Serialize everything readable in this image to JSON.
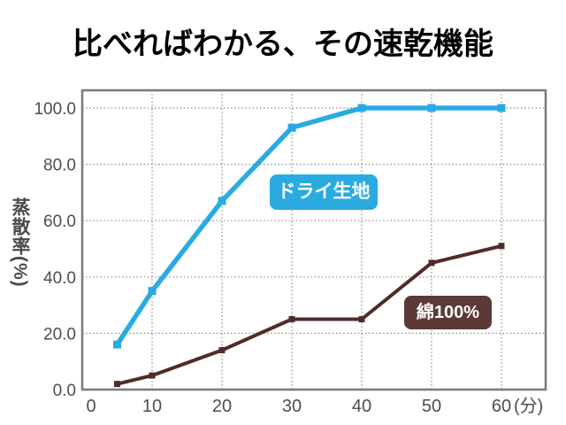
{
  "title": "比べればわかる、その速乾機能",
  "chart_data": {
    "type": "line",
    "title": "比べればわかる、その速乾機能",
    "xlabel_unit": "(分)",
    "ylabel": "蒸散率(%)",
    "x": [
      5,
      10,
      20,
      30,
      40,
      50,
      60
    ],
    "x_ticks": [
      "0",
      "10",
      "20",
      "30",
      "40",
      "50",
      "60"
    ],
    "y_ticks": [
      "0.0",
      "20.0",
      "40.0",
      "60.0",
      "80.0",
      "100.0"
    ],
    "xlim": [
      0,
      66
    ],
    "ylim": [
      0,
      106
    ],
    "grid": "dotted",
    "legend_position": "inline-labels",
    "series": [
      {
        "name": "ドライ生地",
        "values": [
          16,
          35,
          67,
          93,
          100,
          100,
          100
        ],
        "color": "#29ABE2",
        "label_bg": "#29ABE2"
      },
      {
        "name": "綿100%",
        "values": [
          2,
          5,
          14,
          25,
          25,
          45,
          51
        ],
        "color": "#4F2B29",
        "label_bg": "#5C3836"
      }
    ]
  },
  "colors": {
    "background": "#ffffff",
    "title_text": "#000000",
    "axis_border": "#7d7d7d",
    "gridline": "#8a8a8a",
    "tick_text": "#4d4d4d",
    "label_text": "#ffffff"
  }
}
